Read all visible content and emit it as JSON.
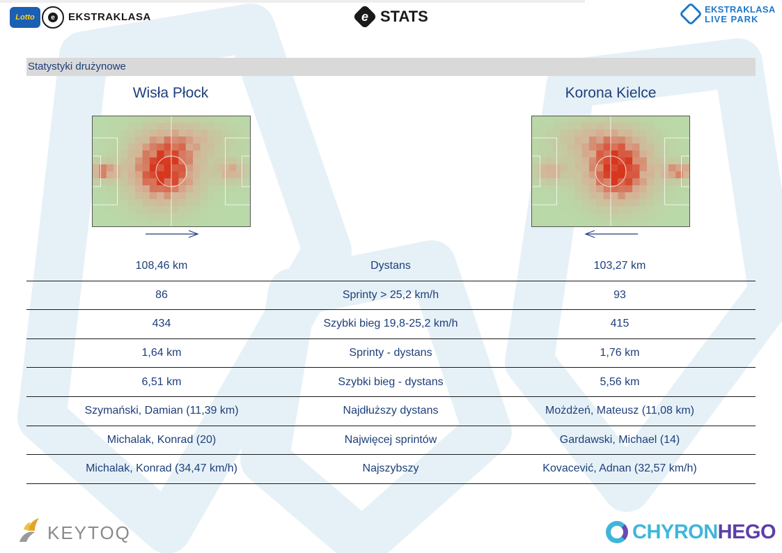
{
  "header": {
    "lotto_badge": "Lotto",
    "league_logo_text": "EKSTRAKLASA",
    "stats_logo_letter": "e",
    "stats_logo_text": "STATS",
    "live_park_line1": "EKSTRAKLASA",
    "live_park_line2": "LIVE PARK"
  },
  "section": {
    "title": "Statystyki drużynowe"
  },
  "teams": {
    "home": {
      "name": "Wisła Płock",
      "attack_direction": "right"
    },
    "away": {
      "name": "Korona Kielce",
      "attack_direction": "left"
    }
  },
  "stats": [
    {
      "label": "Dystans",
      "home": "108,46 km",
      "away": "103,27 km"
    },
    {
      "label": "Sprinty > 25,2 km/h",
      "home": "86",
      "away": "93"
    },
    {
      "label": "Szybki bieg 19,8-25,2 km/h",
      "home": "434",
      "away": "415"
    },
    {
      "label": "Sprinty - dystans",
      "home": "1,64 km",
      "away": "1,76 km"
    },
    {
      "label": "Szybki bieg - dystans",
      "home": "6,51 km",
      "away": "5,56 km"
    },
    {
      "label": "Najdłuższy dystans",
      "home": "Szymański, Damian (11,39 km)",
      "away": "Możdżeń, Mateusz (11,08 km)"
    },
    {
      "label": "Najwięcej sprintów",
      "home": "Michalak, Konrad (20)",
      "away": "Gardawski, Michael (14)"
    },
    {
      "label": "Najszybszy",
      "home": "Michalak, Konrad (34,47 km/h)",
      "away": "Kovacević, Adnan (32,57 km/h)"
    }
  ],
  "footer": {
    "keytoq_text": "KEYTOQ",
    "chyron_part1": "CHYRON",
    "chyron_part2": "HEGO"
  },
  "colors": {
    "text_blue": "#1d3f7a",
    "section_bar": "#d9d9d9",
    "pitch_green": "#b9d9a8",
    "heat_red": "#d9381e"
  }
}
